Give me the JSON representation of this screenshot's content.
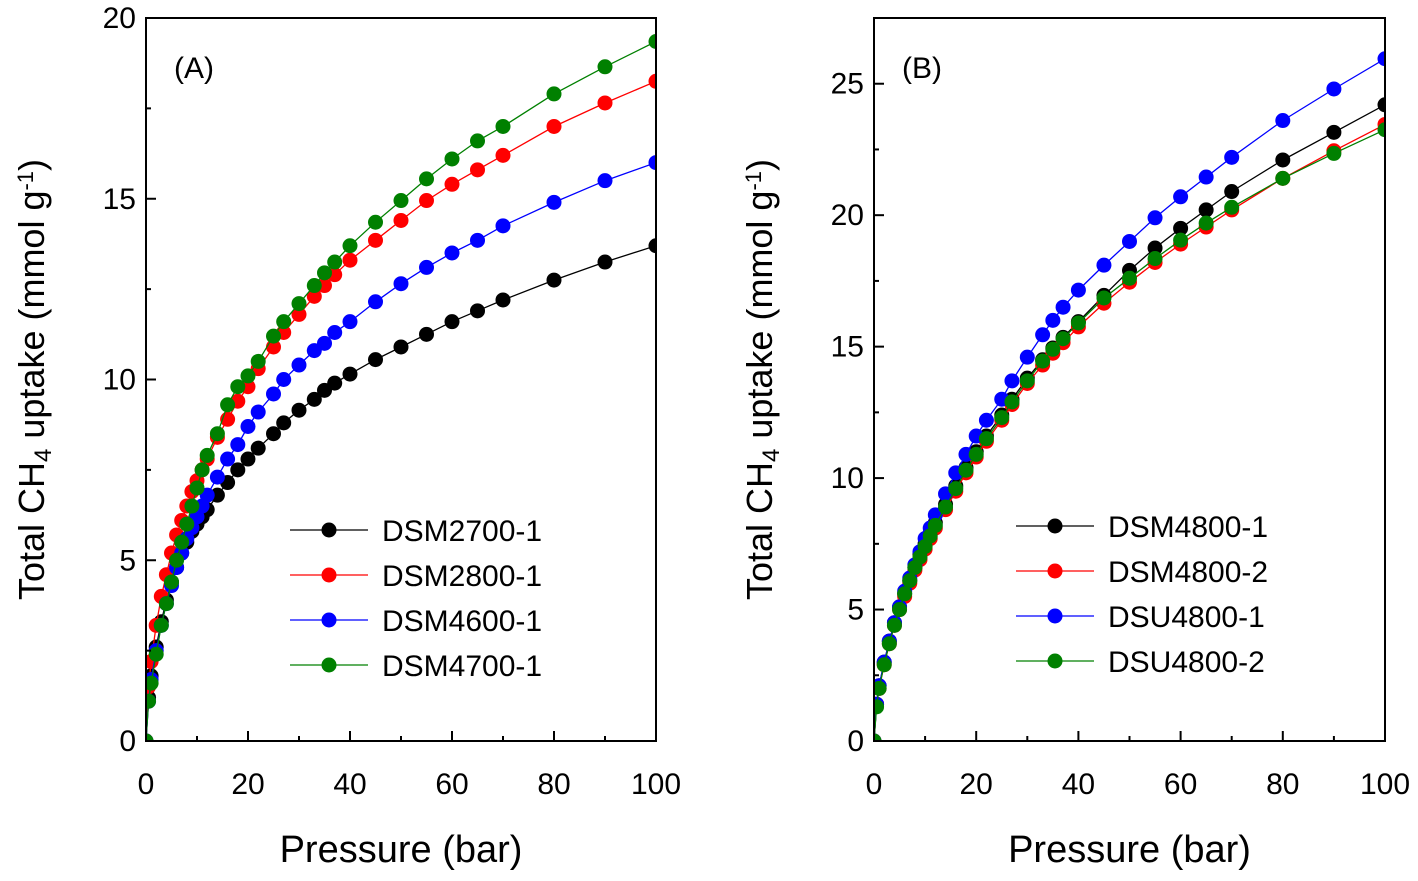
{
  "chart_data": [
    {
      "type": "line",
      "panel_label": "(A)",
      "xlabel": "Pressure (bar)",
      "ylabel": {
        "prefix": "Total CH",
        "sub": "4",
        "middle": " uptake (mmol g",
        "sup": "-1",
        "suffix": ")"
      },
      "xlim": [
        0,
        100
      ],
      "ylim": [
        0,
        20
      ],
      "xticks": [
        0,
        20,
        40,
        60,
        80,
        100
      ],
      "yticks": [
        0,
        5,
        10,
        15,
        20
      ],
      "grid": false,
      "legend_position": "lower-right",
      "series": [
        {
          "name": "DSM2700-1",
          "color": "#000000",
          "x": [
            0.0,
            0.5,
            1,
            2,
            3,
            4,
            5,
            6,
            7,
            8,
            9,
            10,
            11,
            12,
            14,
            16,
            18,
            20,
            22,
            25,
            27,
            30,
            33,
            35,
            37,
            40,
            45,
            50,
            55,
            60,
            65,
            70,
            80,
            90,
            100
          ],
          "y": [
            0.0,
            1.2,
            1.8,
            2.6,
            3.3,
            3.9,
            4.4,
            4.8,
            5.2,
            5.5,
            5.8,
            6.0,
            6.2,
            6.4,
            6.8,
            7.15,
            7.5,
            7.8,
            8.1,
            8.5,
            8.8,
            9.15,
            9.45,
            9.7,
            9.9,
            10.15,
            10.55,
            10.9,
            11.25,
            11.6,
            11.9,
            12.2,
            12.75,
            13.25,
            13.7
          ]
        },
        {
          "name": "DSM2800-1",
          "color": "#ff0000",
          "x": [
            0.0,
            0.5,
            1,
            2,
            3,
            4,
            5,
            6,
            7,
            8,
            9,
            10,
            11,
            12,
            14,
            16,
            18,
            20,
            22,
            25,
            27,
            30,
            33,
            35,
            37,
            40,
            45,
            50,
            55,
            60,
            65,
            70,
            80,
            90,
            100
          ],
          "y": [
            0.0,
            1.5,
            2.2,
            3.2,
            4.0,
            4.6,
            5.2,
            5.7,
            6.1,
            6.5,
            6.9,
            7.2,
            7.5,
            7.8,
            8.4,
            8.9,
            9.4,
            9.8,
            10.3,
            10.9,
            11.3,
            11.8,
            12.3,
            12.6,
            12.9,
            13.3,
            13.85,
            14.4,
            14.95,
            15.4,
            15.8,
            16.2,
            17.0,
            17.65,
            18.25
          ]
        },
        {
          "name": "DSM4600-1",
          "color": "#0000ff",
          "x": [
            0.0,
            0.5,
            1,
            2,
            3,
            4,
            5,
            6,
            7,
            8,
            9,
            10,
            11,
            12,
            14,
            16,
            18,
            20,
            22,
            25,
            27,
            30,
            33,
            35,
            37,
            40,
            45,
            50,
            55,
            60,
            65,
            70,
            80,
            90,
            100
          ],
          "y": [
            0.0,
            1.1,
            1.7,
            2.5,
            3.2,
            3.8,
            4.3,
            4.8,
            5.2,
            5.6,
            5.9,
            6.2,
            6.5,
            6.8,
            7.3,
            7.8,
            8.2,
            8.7,
            9.1,
            9.6,
            10.0,
            10.4,
            10.8,
            11.0,
            11.3,
            11.6,
            12.15,
            12.65,
            13.1,
            13.5,
            13.85,
            14.25,
            14.9,
            15.5,
            16.0
          ]
        },
        {
          "name": "DSM4700-1",
          "color": "#008000",
          "x": [
            0.0,
            0.5,
            1,
            2,
            3,
            4,
            5,
            6,
            7,
            8,
            9,
            10,
            11,
            12,
            14,
            16,
            18,
            20,
            22,
            25,
            27,
            30,
            33,
            35,
            37,
            40,
            45,
            50,
            55,
            60,
            65,
            70,
            80,
            90,
            100
          ],
          "y": [
            0.0,
            1.1,
            1.6,
            2.4,
            3.2,
            3.8,
            4.4,
            5.0,
            5.5,
            6.0,
            6.5,
            7.0,
            7.5,
            7.9,
            8.5,
            9.3,
            9.8,
            10.1,
            10.5,
            11.2,
            11.6,
            12.1,
            12.6,
            12.95,
            13.25,
            13.7,
            14.35,
            14.95,
            15.55,
            16.1,
            16.6,
            17.0,
            17.9,
            18.65,
            19.35
          ]
        }
      ]
    },
    {
      "type": "line",
      "panel_label": "(B)",
      "xlabel": "Pressure (bar)",
      "ylabel": {
        "prefix": "Total CH",
        "sub": "4",
        "middle": " uptake (mmol g",
        "sup": "-1",
        "suffix": ")"
      },
      "xlim": [
        0,
        100
      ],
      "ylim": [
        0,
        27.5
      ],
      "xticks": [
        0,
        20,
        40,
        60,
        80,
        100
      ],
      "yticks": [
        0,
        5,
        10,
        15,
        20,
        25
      ],
      "grid": false,
      "legend_position": "lower-right",
      "series": [
        {
          "name": "DSM4800-1",
          "color": "#000000",
          "x": [
            0.0,
            0.5,
            1,
            2,
            3,
            4,
            5,
            6,
            7,
            8,
            9,
            10,
            11,
            12,
            14,
            16,
            18,
            20,
            22,
            25,
            27,
            30,
            33,
            35,
            37,
            40,
            45,
            50,
            55,
            60,
            65,
            70,
            80,
            90,
            100
          ],
          "y": [
            0.0,
            1.4,
            2.1,
            3.0,
            3.8,
            4.5,
            5.1,
            5.6,
            6.1,
            6.6,
            7.1,
            7.5,
            7.9,
            8.3,
            9.0,
            9.7,
            10.4,
            11.0,
            11.6,
            12.4,
            13.0,
            13.8,
            14.5,
            14.95,
            15.35,
            15.95,
            16.95,
            17.9,
            18.75,
            19.5,
            20.2,
            20.9,
            22.1,
            23.15,
            24.2
          ]
        },
        {
          "name": "DSM4800-2",
          "color": "#ff0000",
          "x": [
            0.0,
            0.5,
            1,
            2,
            3,
            4,
            5,
            6,
            7,
            8,
            9,
            10,
            11,
            12,
            14,
            16,
            18,
            20,
            22,
            25,
            27,
            30,
            33,
            35,
            37,
            40,
            45,
            50,
            55,
            60,
            65,
            70,
            80,
            90,
            100
          ],
          "y": [
            0.0,
            1.4,
            2.0,
            2.9,
            3.7,
            4.4,
            5.0,
            5.5,
            6.0,
            6.5,
            6.9,
            7.3,
            7.7,
            8.1,
            8.8,
            9.5,
            10.2,
            10.8,
            11.4,
            12.2,
            12.8,
            13.6,
            14.3,
            14.75,
            15.15,
            15.75,
            16.65,
            17.45,
            18.2,
            18.9,
            19.55,
            20.2,
            21.4,
            22.45,
            23.45
          ]
        },
        {
          "name": "DSU4800-1",
          "color": "#0000ff",
          "x": [
            0.0,
            0.5,
            1,
            2,
            3,
            4,
            5,
            6,
            7,
            8,
            9,
            10,
            11,
            12,
            14,
            16,
            18,
            20,
            22,
            25,
            27,
            30,
            33,
            35,
            37,
            40,
            45,
            50,
            55,
            60,
            65,
            70,
            80,
            90,
            100
          ],
          "y": [
            0.0,
            1.4,
            2.1,
            3.0,
            3.8,
            4.5,
            5.1,
            5.7,
            6.2,
            6.7,
            7.2,
            7.7,
            8.1,
            8.6,
            9.4,
            10.2,
            10.9,
            11.6,
            12.2,
            13.0,
            13.7,
            14.6,
            15.45,
            16.0,
            16.5,
            17.15,
            18.1,
            19.0,
            19.9,
            20.7,
            21.45,
            22.2,
            23.6,
            24.8,
            25.95
          ]
        },
        {
          "name": "DSU4800-2",
          "color": "#008000",
          "x": [
            0.0,
            0.5,
            1,
            2,
            3,
            4,
            5,
            6,
            7,
            8,
            9,
            10,
            11,
            12,
            14,
            16,
            18,
            20,
            22,
            25,
            27,
            30,
            33,
            35,
            37,
            40,
            45,
            50,
            55,
            60,
            65,
            70,
            80,
            90,
            100
          ],
          "y": [
            0.0,
            1.3,
            2.0,
            2.9,
            3.7,
            4.4,
            5.0,
            5.6,
            6.1,
            6.6,
            7.0,
            7.4,
            7.8,
            8.2,
            8.9,
            9.6,
            10.3,
            10.9,
            11.5,
            12.3,
            12.9,
            13.7,
            14.45,
            14.9,
            15.3,
            15.9,
            16.85,
            17.6,
            18.35,
            19.05,
            19.7,
            20.3,
            21.4,
            22.35,
            23.25
          ]
        }
      ]
    }
  ]
}
